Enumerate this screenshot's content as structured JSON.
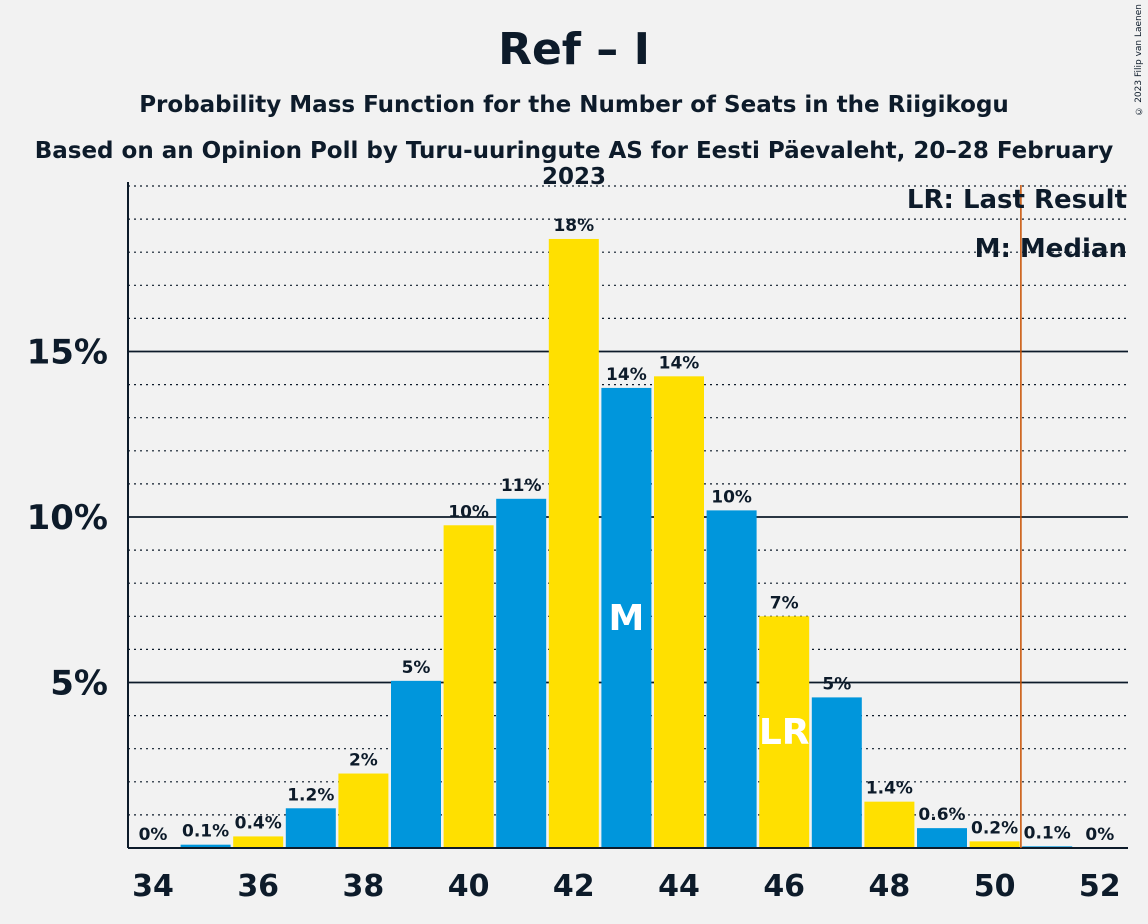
{
  "header": {
    "title": "Ref – I",
    "subtitle": "Probability Mass Function for the Number of Seats in the Riigikogu",
    "subtitle2": "Based on an Opinion Poll by Turu-uuringute AS for Eesti Päevaleht, 20–28 February 2023",
    "copyright": "© 2023 Filip van Laenen"
  },
  "legend": {
    "last_result": "LR: Last Result",
    "median": "M: Median"
  },
  "colors": {
    "blue": "#0096dc",
    "yellow": "#ffe000",
    "last_result_line": "#c85000",
    "background": "#f2f2f2"
  },
  "chart_data": {
    "type": "bar",
    "categories": [
      34,
      35,
      36,
      37,
      38,
      39,
      40,
      41,
      42,
      43,
      44,
      45,
      46,
      47,
      48,
      49,
      50,
      51,
      52
    ],
    "values": [
      0,
      0.1,
      0.35,
      1.2,
      2.25,
      5.05,
      9.75,
      10.55,
      18.4,
      13.9,
      14.25,
      10.2,
      7.0,
      4.55,
      1.4,
      0.6,
      0.2,
      0.05,
      0
    ],
    "data_labels": [
      "0%",
      "0.1%",
      "0.4%",
      "1.2%",
      "2%",
      "5%",
      "10%",
      "11%",
      "18%",
      "14%",
      "14%",
      "10%",
      "7%",
      "5%",
      "1.4%",
      "0.6%",
      "0.2%",
      "0.1%",
      "0%"
    ],
    "ytick_labels": [
      "5%",
      "10%",
      "15%"
    ],
    "yticks": [
      5,
      10,
      15
    ],
    "xtick_labels": [
      "34",
      "36",
      "38",
      "40",
      "42",
      "44",
      "46",
      "48",
      "50",
      "52"
    ],
    "ylim": [
      0,
      20
    ],
    "median": 43,
    "median_label": "M",
    "last_result": 46,
    "last_result_label": "LR",
    "last_result_line_x": 50.5,
    "grid": true
  }
}
